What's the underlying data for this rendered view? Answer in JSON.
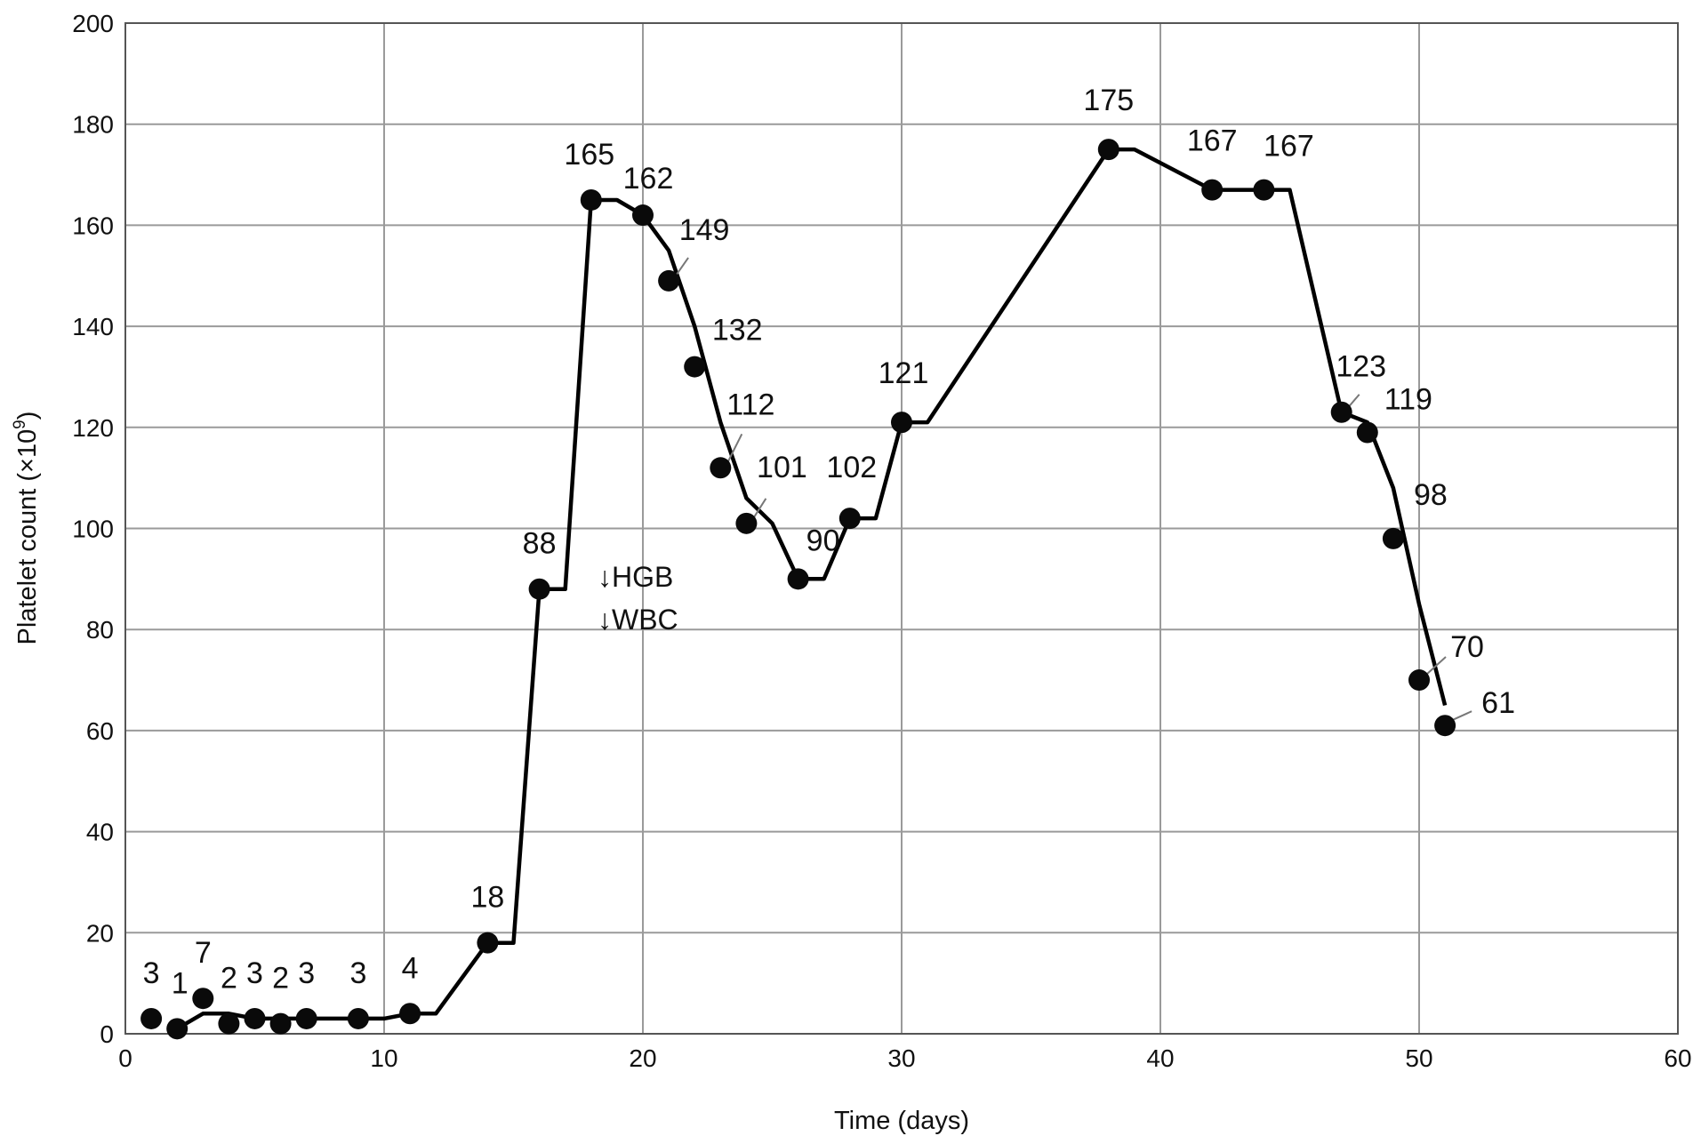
{
  "chart_data": {
    "type": "line",
    "xlabel": "Time (days)",
    "ylabel_main": "Platelet count (×10",
    "ylabel_sup": "9",
    "ylabel_close": ")",
    "xlim": [
      0,
      60
    ],
    "ylim": [
      0,
      200
    ],
    "x_ticks": [
      "0",
      "10",
      "20",
      "30",
      "40",
      "50",
      "60"
    ],
    "y_ticks": [
      "0",
      "20",
      "40",
      "60",
      "80",
      "100",
      "120",
      "140",
      "160",
      "180",
      "200"
    ],
    "grid": true,
    "points": [
      {
        "x": 1,
        "y": 3,
        "label": "3"
      },
      {
        "x": 2,
        "y": 1,
        "label": "1"
      },
      {
        "x": 3,
        "y": 7,
        "label": "7"
      },
      {
        "x": 4,
        "y": 2,
        "label": "2"
      },
      {
        "x": 5,
        "y": 3,
        "label": "3"
      },
      {
        "x": 6,
        "y": 2,
        "label": "2"
      },
      {
        "x": 7,
        "y": 3,
        "label": "3"
      },
      {
        "x": 9,
        "y": 3,
        "label": "3"
      },
      {
        "x": 11,
        "y": 4,
        "label": "4"
      },
      {
        "x": 14,
        "y": 18,
        "label": "18"
      },
      {
        "x": 16,
        "y": 88,
        "label": "88"
      },
      {
        "x": 18,
        "y": 165,
        "label": "165"
      },
      {
        "x": 20,
        "y": 162,
        "label": "162"
      },
      {
        "x": 21,
        "y": 149,
        "label": "149"
      },
      {
        "x": 22,
        "y": 132,
        "label": "132"
      },
      {
        "x": 23,
        "y": 112,
        "label": "112"
      },
      {
        "x": 24,
        "y": 101,
        "label": "101"
      },
      {
        "x": 26,
        "y": 90,
        "label": "90"
      },
      {
        "x": 28,
        "y": 102,
        "label": "102"
      },
      {
        "x": 30,
        "y": 121,
        "label": "121"
      },
      {
        "x": 38,
        "y": 175,
        "label": "175"
      },
      {
        "x": 42,
        "y": 167,
        "label": "167"
      },
      {
        "x": 44,
        "y": 167,
        "label": "167"
      },
      {
        "x": 47,
        "y": 123,
        "label": "123"
      },
      {
        "x": 48,
        "y": 119,
        "label": "119"
      },
      {
        "x": 49,
        "y": 98,
        "label": "98"
      },
      {
        "x": 50,
        "y": 70,
        "label": "70"
      },
      {
        "x": 51,
        "y": 61,
        "label": "61"
      }
    ],
    "trend_line": [
      [
        2,
        1
      ],
      [
        3,
        4
      ],
      [
        4,
        4
      ],
      [
        5,
        3
      ],
      [
        7,
        3
      ],
      [
        8,
        3
      ],
      [
        10,
        3
      ],
      [
        11,
        4
      ],
      [
        12,
        4
      ],
      [
        14,
        18
      ],
      [
        15,
        18
      ],
      [
        16,
        88
      ],
      [
        17,
        88
      ],
      [
        18,
        165
      ],
      [
        19,
        165
      ],
      [
        20,
        162
      ],
      [
        21,
        155
      ],
      [
        22,
        140
      ],
      [
        23,
        121
      ],
      [
        24,
        106
      ],
      [
        25,
        101
      ],
      [
        26,
        90
      ],
      [
        27,
        90
      ],
      [
        28,
        102
      ],
      [
        29,
        102
      ],
      [
        30,
        121
      ],
      [
        31,
        121
      ],
      [
        38,
        175
      ],
      [
        39,
        175
      ],
      [
        42,
        167
      ],
      [
        45,
        167
      ],
      [
        47,
        123
      ],
      [
        48,
        121
      ],
      [
        49,
        108
      ],
      [
        50,
        85
      ],
      [
        51,
        65
      ]
    ],
    "annotations": [
      "↓HGB",
      "↓WBC"
    ]
  }
}
